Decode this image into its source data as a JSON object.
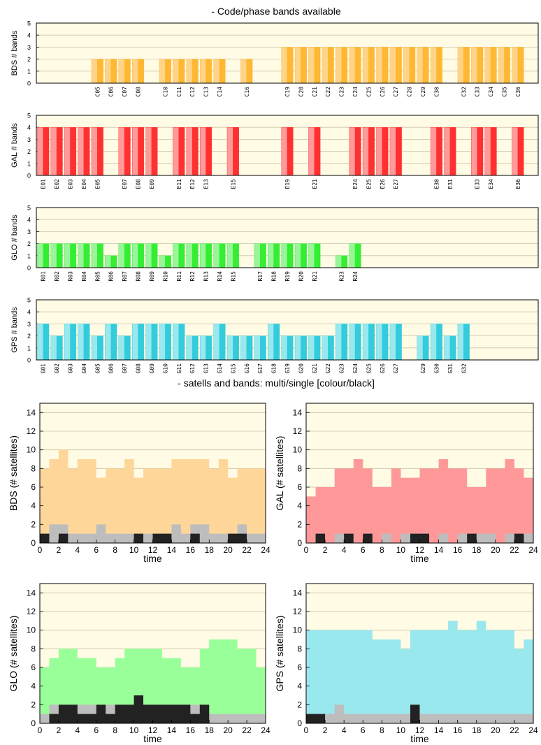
{
  "section_titles": {
    "bands": "- Code/phase bands available",
    "satells": "- satells and bands: multi/single [colour/black]"
  },
  "chart_data": [
    {
      "type": "bar",
      "system": "BDS",
      "ylabel": "BDS # bands",
      "ylim": [
        0,
        5
      ],
      "color": "#ffb833",
      "light": "#ffd488",
      "categories": [
        "C05",
        "C06",
        "C07",
        "C08",
        "C10",
        "C11",
        "C12",
        "C13",
        "C14",
        "C16",
        "C19",
        "C20",
        "C21",
        "C22",
        "C23",
        "C24",
        "C25",
        "C26",
        "C27",
        "C28",
        "C29",
        "C30",
        "C32",
        "C33",
        "C34",
        "C35",
        "C36"
      ],
      "values": [
        2,
        2,
        2,
        2,
        2,
        2,
        2,
        2,
        2,
        2,
        3,
        3,
        3,
        3,
        3,
        3,
        3,
        3,
        3,
        3,
        3,
        3,
        3,
        3,
        3,
        3,
        3
      ]
    },
    {
      "type": "bar",
      "system": "GAL",
      "ylabel": "GAL # bands",
      "ylim": [
        0,
        5
      ],
      "color": "#ff3030",
      "light": "#ff9a9a",
      "categories": [
        "E01",
        "E02",
        "E03",
        "E04",
        "E05",
        "E07",
        "E08",
        "E09",
        "E11",
        "E12",
        "E13",
        "E15",
        "E19",
        "E21",
        "E24",
        "E25",
        "E26",
        "E27",
        "E30",
        "E31",
        "E33",
        "E34",
        "E36"
      ],
      "values": [
        4,
        4,
        4,
        4,
        4,
        4,
        4,
        4,
        4,
        4,
        4,
        4,
        4,
        4,
        4,
        4,
        4,
        4,
        4,
        4,
        4,
        4,
        4
      ]
    },
    {
      "type": "bar",
      "system": "GLO",
      "ylabel": "GLO # bands",
      "ylim": [
        0,
        5
      ],
      "color": "#33ee33",
      "light": "#99f599",
      "categories": [
        "R01",
        "R02",
        "R03",
        "R04",
        "R05",
        "R06",
        "R07",
        "R08",
        "R09",
        "R10",
        "R11",
        "R12",
        "R13",
        "R14",
        "R15",
        "R17",
        "R18",
        "R19",
        "R20",
        "R21",
        "R23",
        "R24"
      ],
      "values": [
        2,
        2,
        2,
        2,
        2,
        1,
        2,
        2,
        2,
        1,
        2,
        2,
        2,
        2,
        2,
        2,
        2,
        2,
        2,
        2,
        1,
        2
      ]
    },
    {
      "type": "bar",
      "system": "GPS",
      "ylabel": "GPS # bands",
      "ylim": [
        0,
        5
      ],
      "color": "#33ccdd",
      "light": "#99e8ee",
      "categories": [
        "G01",
        "G02",
        "G03",
        "G04",
        "G05",
        "G06",
        "G07",
        "G08",
        "G09",
        "G10",
        "G11",
        "G12",
        "G13",
        "G14",
        "G15",
        "G16",
        "G17",
        "G18",
        "G19",
        "G20",
        "G21",
        "G22",
        "G23",
        "G24",
        "G25",
        "G26",
        "G27",
        "G29",
        "G30",
        "G31",
        "G32"
      ],
      "values": [
        3,
        2,
        3,
        3,
        2,
        3,
        2,
        3,
        3,
        3,
        3,
        2,
        2,
        3,
        2,
        2,
        2,
        3,
        2,
        2,
        2,
        2,
        3,
        3,
        3,
        3,
        3,
        2,
        3,
        2,
        3
      ]
    },
    {
      "type": "area",
      "system": "BDS",
      "ylabel": "BDS (# satellites)",
      "xlabel": "time",
      "xlim": [
        0,
        24
      ],
      "ylim": [
        0,
        15
      ],
      "color": "#ffd699",
      "x": [
        0,
        1,
        2,
        3,
        4,
        5,
        6,
        7,
        8,
        9,
        10,
        11,
        12,
        13,
        14,
        15,
        16,
        17,
        18,
        19,
        20,
        21,
        22,
        23,
        24
      ],
      "multi": [
        8,
        9,
        10,
        8,
        9,
        9,
        7,
        8,
        8,
        9,
        7,
        8,
        8,
        8,
        9,
        9,
        9,
        9,
        8,
        9,
        7,
        8,
        8,
        8,
        8
      ],
      "single_gray": [
        1,
        2,
        2,
        1,
        1,
        1,
        2,
        1,
        1,
        1,
        1,
        1,
        1,
        1,
        2,
        1,
        2,
        2,
        1,
        1,
        1,
        2,
        1,
        1,
        1
      ],
      "single_black": [
        1,
        0,
        1,
        0,
        0,
        0,
        0,
        0,
        0,
        0,
        1,
        0,
        1,
        1,
        0,
        0,
        1,
        0,
        0,
        0,
        1,
        1,
        0,
        0,
        0
      ]
    },
    {
      "type": "area",
      "system": "GAL",
      "ylabel": "GAL (# satellites)",
      "xlabel": "time",
      "xlim": [
        0,
        24
      ],
      "ylim": [
        0,
        15
      ],
      "color": "#ff9999",
      "x": [
        0,
        1,
        2,
        3,
        4,
        5,
        6,
        7,
        8,
        9,
        10,
        11,
        12,
        13,
        14,
        15,
        16,
        17,
        18,
        19,
        20,
        21,
        22,
        23,
        24
      ],
      "multi": [
        5,
        6,
        6,
        8,
        8,
        9,
        8,
        6,
        6,
        8,
        7,
        7,
        8,
        8,
        9,
        8,
        8,
        6,
        6,
        8,
        8,
        9,
        8,
        7,
        5
      ],
      "single_gray": [
        0,
        1,
        0,
        1,
        1,
        0,
        1,
        0,
        1,
        0,
        1,
        1,
        1,
        0,
        1,
        0,
        1,
        0,
        1,
        1,
        0,
        1,
        0,
        1,
        1
      ],
      "single_black": [
        0,
        1,
        0,
        0,
        1,
        0,
        1,
        0,
        0,
        0,
        0,
        1,
        1,
        0,
        0,
        0,
        0,
        1,
        0,
        0,
        0,
        0,
        1,
        0,
        0
      ]
    },
    {
      "type": "area",
      "system": "GLO",
      "ylabel": "GLO (# satellites)",
      "xlabel": "time",
      "xlim": [
        0,
        24
      ],
      "ylim": [
        0,
        15
      ],
      "color": "#99ff99",
      "x": [
        0,
        1,
        2,
        3,
        4,
        5,
        6,
        7,
        8,
        9,
        10,
        11,
        12,
        13,
        14,
        15,
        16,
        17,
        18,
        19,
        20,
        21,
        22,
        23,
        24
      ],
      "multi": [
        6,
        7,
        8,
        8,
        7,
        7,
        6,
        6,
        7,
        8,
        8,
        8,
        8,
        7,
        7,
        6,
        6,
        8,
        9,
        9,
        9,
        8,
        8,
        6,
        5
      ],
      "single_gray": [
        1,
        2,
        2,
        2,
        2,
        2,
        2,
        2,
        2,
        2,
        2,
        2,
        2,
        2,
        2,
        2,
        2,
        2,
        1,
        1,
        1,
        1,
        1,
        1,
        1
      ],
      "single_black": [
        0,
        1,
        2,
        2,
        1,
        1,
        2,
        1,
        2,
        2,
        3,
        2,
        2,
        2,
        2,
        2,
        1,
        2,
        0,
        0,
        0,
        0,
        0,
        0,
        1
      ]
    },
    {
      "type": "area",
      "system": "GPS",
      "ylabel": "GPS (# satellites)",
      "xlabel": "time",
      "xlim": [
        0,
        24
      ],
      "ylim": [
        0,
        15
      ],
      "color": "#99e8ee",
      "x": [
        0,
        1,
        2,
        3,
        4,
        5,
        6,
        7,
        8,
        9,
        10,
        11,
        12,
        13,
        14,
        15,
        16,
        17,
        18,
        19,
        20,
        21,
        22,
        23,
        24
      ],
      "multi": [
        10,
        10,
        10,
        10,
        10,
        10,
        10,
        9,
        9,
        9,
        8,
        10,
        10,
        10,
        10,
        11,
        10,
        10,
        11,
        10,
        10,
        10,
        8,
        9,
        9
      ],
      "single_gray": [
        1,
        1,
        1,
        2,
        1,
        1,
        1,
        1,
        1,
        1,
        1,
        1,
        1,
        1,
        1,
        1,
        1,
        1,
        1,
        1,
        1,
        1,
        1,
        1,
        1
      ],
      "single_black": [
        1,
        1,
        0,
        0,
        0,
        0,
        0,
        0,
        0,
        0,
        0,
        2,
        0,
        0,
        0,
        0,
        0,
        0,
        0,
        0,
        0,
        0,
        0,
        0,
        0
      ]
    }
  ]
}
